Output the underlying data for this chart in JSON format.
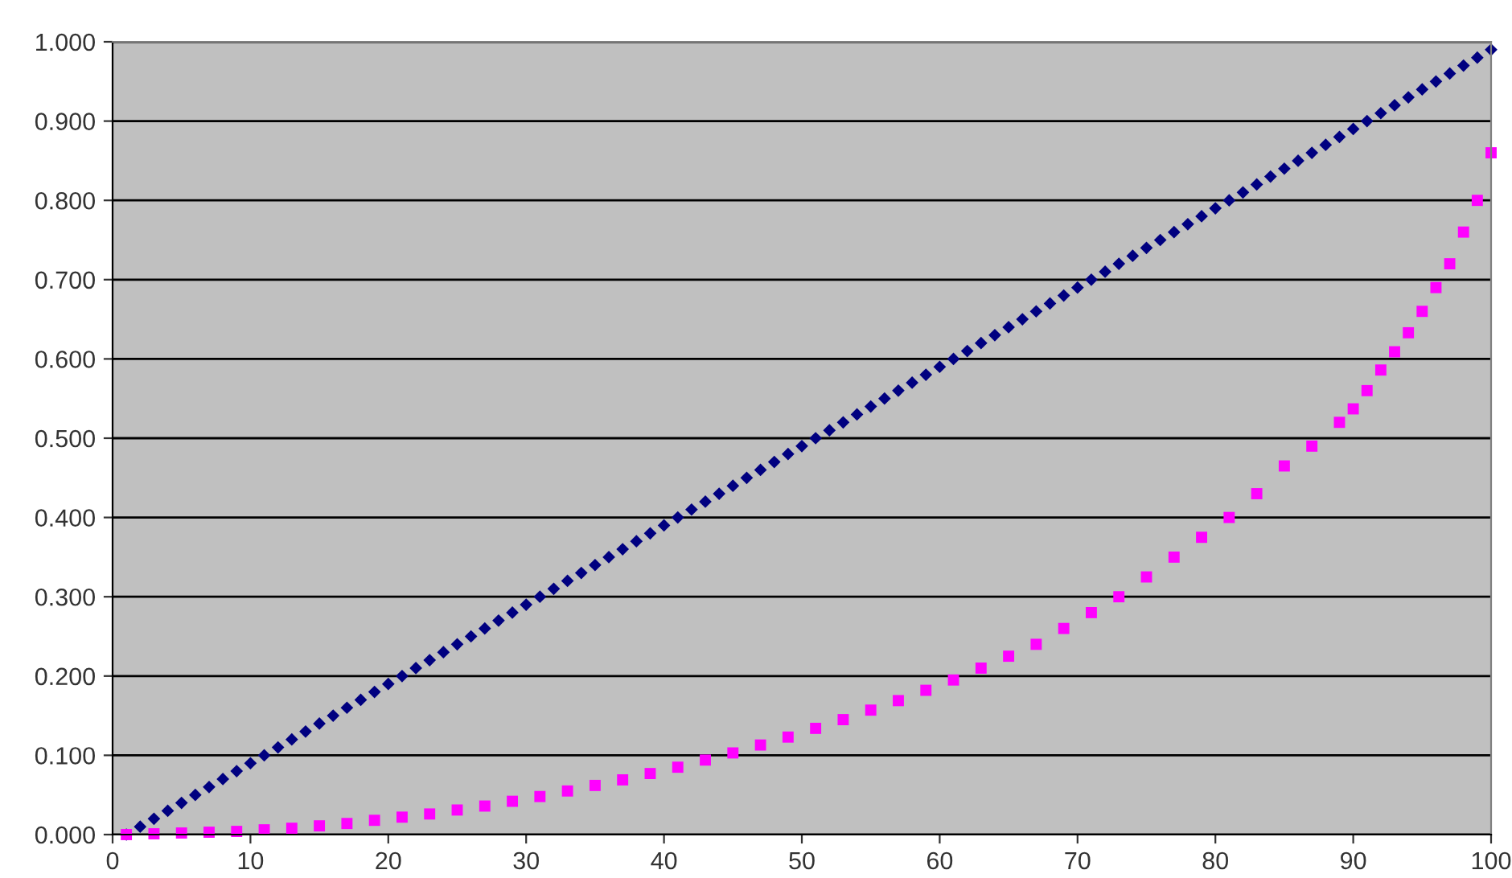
{
  "chart_data": {
    "type": "scatter",
    "xlim": [
      0,
      100
    ],
    "ylim": [
      0,
      1
    ],
    "xticks": [
      0,
      10,
      20,
      30,
      40,
      50,
      60,
      70,
      80,
      90,
      100
    ],
    "yticks": [
      {
        "value": 0,
        "label": "0.000"
      },
      {
        "value": 0.1,
        "label": "0.100"
      },
      {
        "value": 0.2,
        "label": "0.200"
      },
      {
        "value": 0.3,
        "label": "0.300"
      },
      {
        "value": 0.4,
        "label": "0.400"
      },
      {
        "value": 0.5,
        "label": "0.500"
      },
      {
        "value": 0.6,
        "label": "0.600"
      },
      {
        "value": 0.7,
        "label": "0.700"
      },
      {
        "value": 0.8,
        "label": "0.800"
      },
      {
        "value": 0.9,
        "label": "0.900"
      },
      {
        "value": 1,
        "label": "1.000"
      }
    ],
    "grid": "y",
    "legend": false,
    "series": [
      {
        "color": "#000080",
        "marker": "diamond",
        "x": [
          1,
          2,
          3,
          4,
          5,
          6,
          7,
          8,
          9,
          10,
          11,
          12,
          13,
          14,
          15,
          16,
          17,
          18,
          19,
          20,
          21,
          22,
          23,
          24,
          25,
          26,
          27,
          28,
          29,
          30,
          31,
          32,
          33,
          34,
          35,
          36,
          37,
          38,
          39,
          40,
          41,
          42,
          43,
          44,
          45,
          46,
          47,
          48,
          49,
          50,
          51,
          52,
          53,
          54,
          55,
          56,
          57,
          58,
          59,
          60,
          61,
          62,
          63,
          64,
          65,
          66,
          67,
          68,
          69,
          70,
          71,
          72,
          73,
          74,
          75,
          76,
          77,
          78,
          79,
          80,
          81,
          82,
          83,
          84,
          85,
          86,
          87,
          88,
          89,
          90,
          91,
          92,
          93,
          94,
          95,
          96,
          97,
          98,
          99,
          100
        ],
        "values": [
          0,
          0.01,
          0.02,
          0.03,
          0.04,
          0.05,
          0.06,
          0.07,
          0.08,
          0.09,
          0.1,
          0.11,
          0.12,
          0.13,
          0.14,
          0.15,
          0.16,
          0.17,
          0.18,
          0.19,
          0.2,
          0.21,
          0.22,
          0.23,
          0.24,
          0.25,
          0.26,
          0.27,
          0.28,
          0.29,
          0.3,
          0.31,
          0.32,
          0.33,
          0.34,
          0.35,
          0.36,
          0.37,
          0.38,
          0.39,
          0.4,
          0.41,
          0.42,
          0.43,
          0.44,
          0.45,
          0.46,
          0.47,
          0.48,
          0.49,
          0.5,
          0.51,
          0.52,
          0.53,
          0.54,
          0.55,
          0.56,
          0.57,
          0.58,
          0.59,
          0.6,
          0.61,
          0.62,
          0.63,
          0.64,
          0.65,
          0.66,
          0.67,
          0.68,
          0.69,
          0.7,
          0.71,
          0.72,
          0.73,
          0.74,
          0.75,
          0.76,
          0.77,
          0.78,
          0.79,
          0.8,
          0.81,
          0.82,
          0.83,
          0.84,
          0.85,
          0.86,
          0.87,
          0.88,
          0.89,
          0.9,
          0.91,
          0.92,
          0.93,
          0.94,
          0.95,
          0.96,
          0.97,
          0.98,
          0.99
        ]
      },
      {
        "color": "#ff00ff",
        "marker": "square",
        "x": [
          1,
          3,
          5,
          7,
          9,
          11,
          13,
          15,
          17,
          19,
          21,
          23,
          25,
          27,
          29,
          31,
          33,
          35,
          37,
          39,
          41,
          43,
          45,
          47,
          49,
          51,
          53,
          55,
          57,
          59,
          61,
          63,
          65,
          67,
          69,
          71,
          73,
          75,
          77,
          79,
          81,
          83,
          85,
          87,
          89,
          90,
          91,
          92,
          93,
          94,
          95,
          96,
          97,
          98,
          99,
          100
        ],
        "values": [
          0,
          0.001,
          0.002,
          0.003,
          0.004,
          0.006,
          0.008,
          0.011,
          0.014,
          0.018,
          0.022,
          0.026,
          0.031,
          0.036,
          0.042,
          0.048,
          0.055,
          0.062,
          0.069,
          0.077,
          0.085,
          0.094,
          0.103,
          0.113,
          0.123,
          0.134,
          0.145,
          0.157,
          0.169,
          0.182,
          0.195,
          0.21,
          0.225,
          0.24,
          0.26,
          0.28,
          0.3,
          0.325,
          0.35,
          0.375,
          0.4,
          0.43,
          0.465,
          0.49,
          0.52,
          0.537,
          0.56,
          0.586,
          0.609,
          0.633,
          0.66,
          0.69,
          0.72,
          0.76,
          0.8,
          0.86
        ]
      }
    ]
  }
}
